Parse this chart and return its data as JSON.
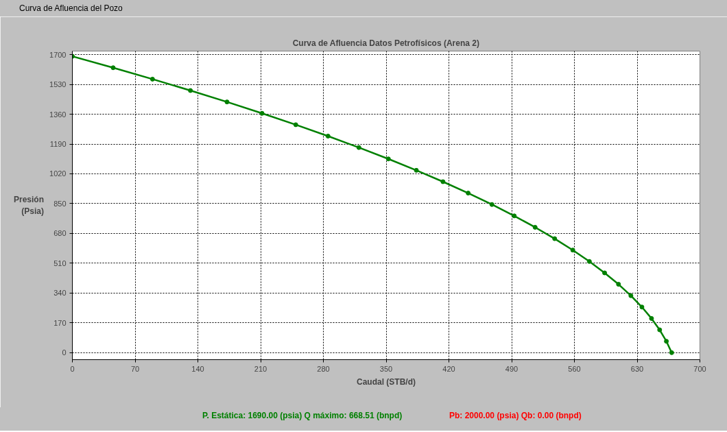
{
  "chart_data": {
    "type": "line",
    "title": "Curva de Afluencia Datos Petrofísicos (Arena 2)",
    "xlabel": "Caudal (STB/d)",
    "ylabel": "Presión\n(Psia)",
    "x": [
      0,
      45.5,
      89.4,
      131.7,
      172.5,
      211.6,
      249.2,
      285.2,
      319.6,
      352.5,
      383.7,
      413.4,
      441.5,
      468.0,
      492.9,
      516.2,
      538.0,
      558.2,
      576.7,
      593.7,
      609.2,
      623.0,
      635.3,
      646.0,
      655.1,
      662.6,
      668.5
    ],
    "series": [
      {
        "color": "#008000",
        "values": [
          1690,
          1625,
          1560,
          1495,
          1430,
          1365,
          1300,
          1235,
          1170,
          1105,
          1040,
          975,
          910,
          845,
          780,
          715,
          650,
          585,
          520,
          455,
          390,
          325,
          260,
          195,
          130,
          65,
          0
        ]
      }
    ],
    "xlim": [
      0,
      700
    ],
    "xticks": [
      0,
      70,
      140,
      210,
      280,
      350,
      420,
      490,
      560,
      630,
      700
    ],
    "ylim": [
      -40,
      1720
    ],
    "yticks": [
      0,
      170,
      340,
      510,
      680,
      850,
      1020,
      1190,
      1360,
      1530,
      1700
    ],
    "grid": true,
    "marker": "circle",
    "line_style": "solid",
    "annotations": [
      "Curva de Afluencia del Pozo",
      "P. Estática: 1690.00 (psia)  Q máximo: 668.51 (bnpd)",
      "Pb: 2000.00 (psia)  Qb: 0.00 (bnpd)"
    ]
  }
}
